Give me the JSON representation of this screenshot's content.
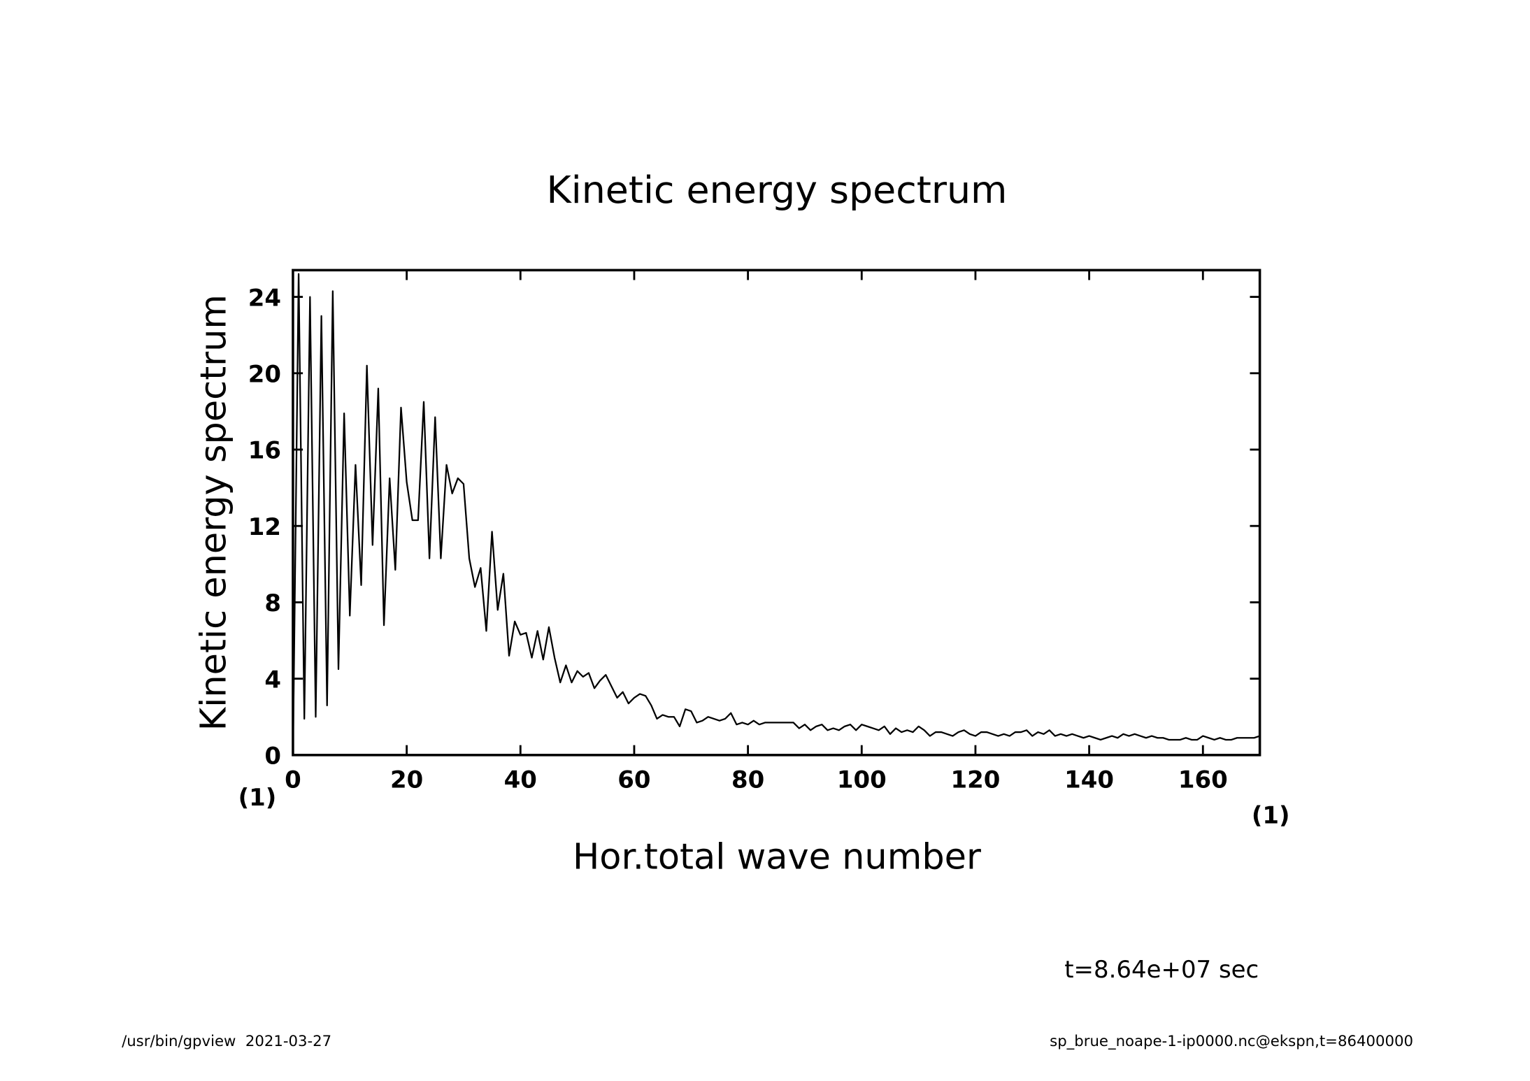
{
  "chart_data": {
    "type": "line",
    "title": "Kinetic energy spectrum",
    "xlabel": "Hor.total wave number",
    "ylabel": "Kinetic energy spectrum",
    "x_unit": "(1)",
    "y_unit": "(1)",
    "time_note": "t=8.64e+07 sec",
    "footer_left": "/usr/bin/gpview  2021-03-27",
    "footer_right": "sp_brue_noape-1-ip0000.nc@ekspn,t=86400000",
    "xlim": [
      0,
      170
    ],
    "ylim": [
      0,
      25.4
    ],
    "xticks": [
      0,
      20,
      40,
      60,
      80,
      100,
      120,
      140,
      160
    ],
    "yticks": [
      0,
      4,
      8,
      12,
      16,
      20,
      24
    ],
    "x": [
      0,
      1,
      2,
      3,
      4,
      5,
      6,
      7,
      8,
      9,
      10,
      11,
      12,
      13,
      14,
      15,
      16,
      17,
      18,
      19,
      20,
      21,
      22,
      23,
      24,
      25,
      26,
      27,
      28,
      29,
      30,
      31,
      32,
      33,
      34,
      35,
      36,
      37,
      38,
      39,
      40,
      41,
      42,
      43,
      44,
      45,
      46,
      47,
      48,
      49,
      50,
      51,
      52,
      53,
      54,
      55,
      56,
      57,
      58,
      59,
      60,
      61,
      62,
      63,
      64,
      65,
      66,
      67,
      68,
      69,
      70,
      71,
      72,
      73,
      74,
      75,
      76,
      77,
      78,
      79,
      80,
      81,
      82,
      83,
      84,
      85,
      86,
      87,
      88,
      89,
      90,
      91,
      92,
      93,
      94,
      95,
      96,
      97,
      98,
      99,
      100,
      101,
      102,
      103,
      104,
      105,
      106,
      107,
      108,
      109,
      110,
      111,
      112,
      113,
      114,
      115,
      116,
      117,
      118,
      119,
      120,
      121,
      122,
      123,
      124,
      125,
      126,
      127,
      128,
      129,
      130,
      131,
      132,
      133,
      134,
      135,
      136,
      137,
      138,
      139,
      140,
      141,
      142,
      143,
      144,
      145,
      146,
      147,
      148,
      149,
      150,
      151,
      152,
      153,
      154,
      155,
      156,
      157,
      158,
      159,
      160,
      161,
      162,
      163,
      164,
      165,
      166,
      167,
      168,
      169,
      170
    ],
    "series": [
      {
        "name": "Kinetic energy spectrum",
        "color": "#000000",
        "values": [
          0,
          25.2,
          1.9,
          24,
          2,
          23,
          2.6,
          24.3,
          4.5,
          17.9,
          7.3,
          15.2,
          8.9,
          20.4,
          11,
          19.2,
          6.8,
          14.5,
          9.7,
          18.2,
          14.3,
          12.3,
          12.3,
          18.5,
          10.3,
          17.7,
          10.3,
          15.2,
          13.7,
          14.5,
          14.2,
          10.3,
          8.8,
          9.8,
          6.5,
          11.7,
          7.6,
          9.5,
          5.2,
          7,
          6.3,
          6.4,
          5.1,
          6.5,
          5,
          6.7,
          5.1,
          3.8,
          4.7,
          3.8,
          4.4,
          4.1,
          4.3,
          3.5,
          3.9,
          4.2,
          3.6,
          3,
          3.3,
          2.7,
          3,
          3.2,
          3.1,
          2.6,
          1.9,
          2.1,
          2,
          2,
          1.5,
          2.4,
          2.3,
          1.7,
          1.8,
          2,
          1.9,
          1.8,
          1.9,
          2.2,
          1.6,
          1.7,
          1.6,
          1.8,
          1.6,
          1.7,
          1.7,
          1.7,
          1.7,
          1.7,
          1.7,
          1.4,
          1.6,
          1.3,
          1.5,
          1.6,
          1.3,
          1.4,
          1.3,
          1.5,
          1.6,
          1.3,
          1.6,
          1.5,
          1.4,
          1.3,
          1.5,
          1.1,
          1.4,
          1.2,
          1.3,
          1.2,
          1.5,
          1.3,
          1,
          1.2,
          1.2,
          1.1,
          1,
          1.2,
          1.3,
          1.1,
          1,
          1.2,
          1.2,
          1.1,
          1,
          1.1,
          1,
          1.2,
          1.2,
          1.3,
          1,
          1.2,
          1.1,
          1.3,
          1,
          1.1,
          1,
          1.1,
          1,
          0.9,
          1,
          0.9,
          0.8,
          0.9,
          1,
          0.9,
          1.1,
          1,
          1.1,
          1,
          0.9,
          1,
          0.9,
          0.9,
          0.8,
          0.8,
          0.8,
          0.9,
          0.8,
          0.8,
          1,
          0.9,
          0.8,
          0.9,
          0.8,
          0.8,
          0.9,
          0.9,
          0.9,
          0.9,
          1
        ]
      }
    ]
  }
}
